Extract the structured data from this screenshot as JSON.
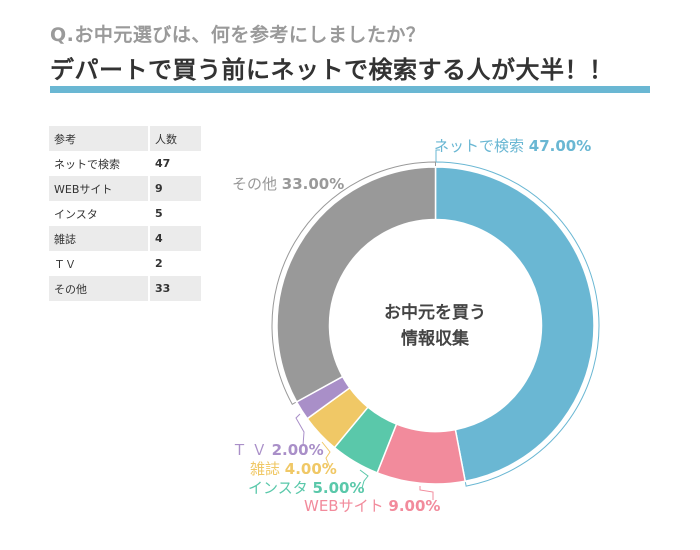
{
  "header": {
    "question": "Q.お中元選びは、何を参考にしましたか？",
    "headline": "デパートで買う前にネットで検索する人が大半！！",
    "accent_color": "#6ab7d3"
  },
  "table": {
    "columns": [
      "参考",
      "人数"
    ],
    "rows": [
      {
        "label": "ネットで検索",
        "value": "47"
      },
      {
        "label": "WEBサイト",
        "value": "9"
      },
      {
        "label": "インスタ",
        "value": "5"
      },
      {
        "label": "雑誌",
        "value": "4"
      },
      {
        "label": "ＴＶ",
        "value": "2"
      },
      {
        "label": "その他",
        "value": "33"
      }
    ]
  },
  "center_label": {
    "line1": "お中元を買う",
    "line2": "情報収集"
  },
  "labels": [
    {
      "name": "ネットで検索",
      "pct": "47.00%",
      "color": "#6ab7d3"
    },
    {
      "name": "WEBサイト",
      "pct": "9.00%",
      "color": "#f28b9c"
    },
    {
      "name": "インスタ",
      "pct": "5.00%",
      "color": "#5ac8aa"
    },
    {
      "name": "雑誌",
      "pct": "4.00%",
      "color": "#f0c866"
    },
    {
      "name": "Ｔ Ｖ",
      "pct": "2.00%",
      "color": "#a98fc8"
    },
    {
      "name": "その他",
      "pct": "33.00%",
      "color": "#999999"
    }
  ],
  "chart_data": {
    "type": "pie",
    "subtype": "donut",
    "title": "お中元を買う 情報収集",
    "categories": [
      "ネットで検索",
      "WEBサイト",
      "インスタ",
      "雑誌",
      "ＴＶ",
      "その他"
    ],
    "values": [
      47,
      9,
      5,
      4,
      2,
      33
    ],
    "percentages": [
      47.0,
      9.0,
      5.0,
      4.0,
      2.0,
      33.0
    ],
    "colors": [
      "#6ab7d3",
      "#f28b9c",
      "#5ac8aa",
      "#f0c866",
      "#a98fc8",
      "#999999"
    ],
    "start_angle": "12 o'clock, clockwise",
    "legend": "none (callout labels)"
  }
}
